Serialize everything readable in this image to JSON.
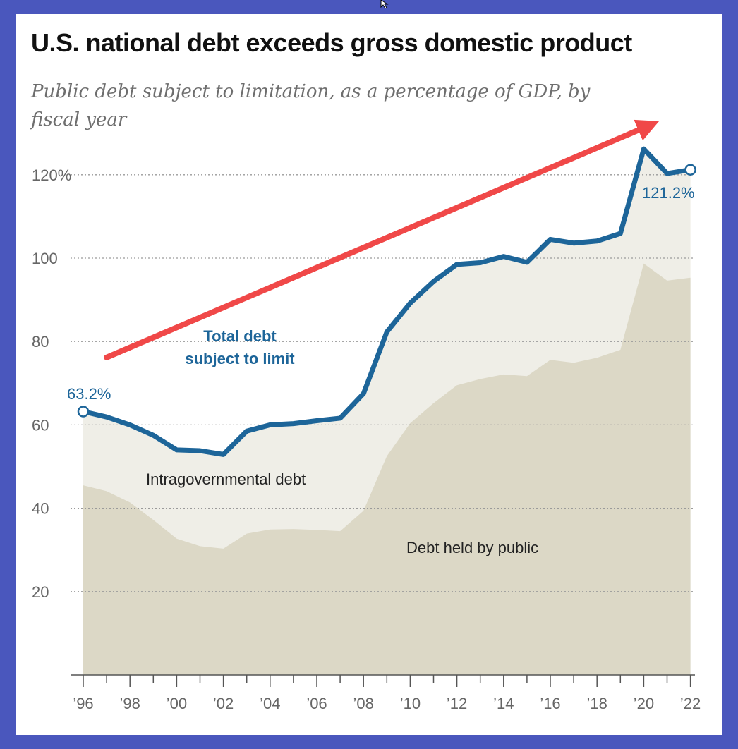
{
  "window": {
    "background": "#4a57bd"
  },
  "icons": {
    "cursor": "mouse-pointer-icon"
  },
  "chart_data": {
    "type": "area",
    "title": "U.S. national debt exceeds gross domestic product",
    "subtitle": "Public debt subject to limitation, as a percentage of GDP, by fiscal year",
    "xlabel": "",
    "ylabel": "",
    "xlim": [
      1996,
      2022
    ],
    "ylim": [
      0,
      128
    ],
    "grid": true,
    "x": [
      1996,
      1997,
      1998,
      1999,
      2000,
      2001,
      2002,
      2003,
      2004,
      2005,
      2006,
      2007,
      2008,
      2009,
      2010,
      2011,
      2012,
      2013,
      2014,
      2015,
      2016,
      2017,
      2018,
      2019,
      2020,
      2021,
      2022
    ],
    "series": [
      {
        "name": "Total debt subject to limit",
        "style": "line",
        "color": "#1d6599",
        "values": [
          63.2,
          61.9,
          60.0,
          57.5,
          54.0,
          53.8,
          52.9,
          58.5,
          60.0,
          60.3,
          61.0,
          61.6,
          67.5,
          82.3,
          89.2,
          94.4,
          98.5,
          98.9,
          100.4,
          99.0,
          104.5,
          103.6,
          104.1,
          105.9,
          126.2,
          120.3,
          121.2
        ]
      },
      {
        "name": "Intragovernmental debt",
        "style": "area-band",
        "color": "#efeee7",
        "values": [
          17.7,
          17.8,
          18.6,
          20.3,
          21.3,
          22.9,
          22.6,
          24.6,
          25.1,
          25.3,
          26.2,
          27.1,
          28.1,
          29.8,
          28.8,
          29.2,
          29.0,
          27.9,
          28.3,
          27.3,
          28.9,
          28.7,
          28.0,
          27.9,
          27.5,
          25.7,
          25.9
        ]
      },
      {
        "name": "Debt held by public",
        "style": "area",
        "color": "#dcd8c6",
        "values": [
          45.5,
          44.1,
          41.4,
          37.2,
          32.7,
          30.9,
          30.3,
          33.9,
          34.9,
          35.0,
          34.8,
          34.5,
          39.4,
          52.5,
          60.4,
          65.2,
          69.5,
          71.0,
          72.1,
          71.7,
          75.6,
          74.9,
          76.1,
          78.0,
          98.7,
          94.6,
          95.3
        ]
      }
    ],
    "y_ticks": [
      {
        "value": 120,
        "label": "120%"
      },
      {
        "value": 100,
        "label": "100"
      },
      {
        "value": 80,
        "label": "80"
      },
      {
        "value": 60,
        "label": "60"
      },
      {
        "value": 40,
        "label": "40"
      },
      {
        "value": 20,
        "label": "20"
      }
    ],
    "x_ticks": [
      {
        "value": 1996,
        "label": "’96"
      },
      {
        "value": 1998,
        "label": "’98"
      },
      {
        "value": 2000,
        "label": "’00"
      },
      {
        "value": 2002,
        "label": "’02"
      },
      {
        "value": 2004,
        "label": "’04"
      },
      {
        "value": 2006,
        "label": "’06"
      },
      {
        "value": 2008,
        "label": "’08"
      },
      {
        "value": 2010,
        "label": "’10"
      },
      {
        "value": 2012,
        "label": "’12"
      },
      {
        "value": 2014,
        "label": "’14"
      },
      {
        "value": 2016,
        "label": "’16"
      },
      {
        "value": 2018,
        "label": "’18"
      },
      {
        "value": 2020,
        "label": "’20"
      },
      {
        "value": 2022,
        "label": "’22"
      }
    ],
    "annotations": {
      "start_label": "63.2%",
      "end_label": "121.2%",
      "total_label_line1": "Total debt",
      "total_label_line2": "subject to limit",
      "intragovernmental_label": "Intragovernmental debt",
      "public_label": "Debt held by public",
      "trend_arrow": {
        "from": [
          1997.0,
          76
        ],
        "to": [
          2020.3,
          133
        ],
        "color": "#f04848"
      }
    }
  }
}
